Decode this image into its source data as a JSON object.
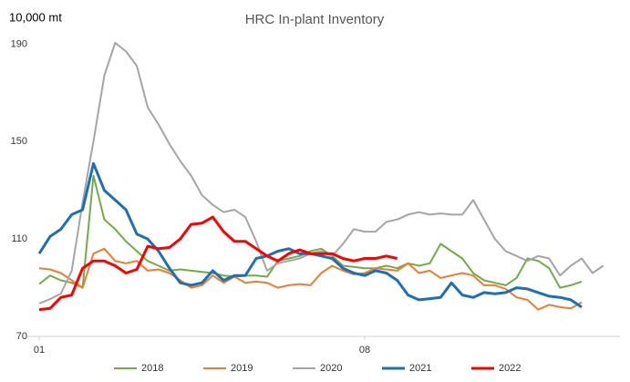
{
  "chart_data": {
    "type": "line",
    "title": "HRC In-plant Inventory",
    "y_label": "10,000 mt",
    "categories": [
      "01",
      null,
      null,
      null,
      null,
      null,
      null,
      null,
      null,
      null,
      null,
      null,
      null,
      null,
      null,
      null,
      null,
      null,
      null,
      null,
      null,
      null,
      null,
      null,
      null,
      null,
      null,
      null,
      null,
      null,
      "08",
      null,
      null,
      null,
      null,
      null,
      null,
      null,
      null,
      null,
      null,
      null,
      null,
      null,
      null,
      null,
      null,
      null,
      null,
      null,
      null,
      null,
      null
    ],
    "ylim": [
      70,
      195
    ],
    "yticks": [
      70,
      110,
      150,
      190
    ],
    "grid": false,
    "legend": "bottom",
    "series": [
      {
        "name": "2018",
        "color": "#70ad47",
        "values": [
          91.5,
          95,
          93,
          92,
          90,
          136,
          118,
          114,
          109,
          105,
          101,
          99,
          97,
          97.5,
          97,
          96.5,
          96,
          95,
          94.5,
          95,
          95,
          94.5,
          101,
          102,
          103,
          105,
          106,
          103,
          99,
          98.5,
          98,
          98,
          99,
          98,
          100,
          99,
          100,
          108,
          105,
          102,
          96,
          93,
          92,
          91,
          94,
          102,
          101,
          98,
          90,
          91,
          92.5,
          null,
          null
        ]
      },
      {
        "name": "2019",
        "color": "#ed7d31",
        "values": [
          98,
          97.5,
          96,
          93,
          90,
          104,
          106,
          101,
          100,
          101,
          97,
          97.5,
          96,
          93,
          90,
          91,
          95,
          92,
          94.5,
          92,
          92.5,
          92,
          90,
          91,
          91.5,
          91,
          96,
          99,
          97,
          95.5,
          96,
          98,
          97.5,
          97,
          100,
          96,
          97,
          94,
          95,
          96,
          95,
          91,
          91,
          89.5,
          86,
          85,
          81,
          83,
          82,
          81.5,
          84,
          null,
          null
        ]
      },
      {
        "name": "2020",
        "color": "#a5a5a5",
        "values": [
          83.5,
          85.3,
          87.6,
          97,
          125,
          150,
          177,
          190.5,
          187,
          181,
          164,
          157,
          149,
          142,
          136,
          128,
          124,
          121,
          122,
          119,
          109,
          97,
          100,
          101,
          102,
          104,
          105,
          103,
          108,
          114,
          113,
          113,
          117,
          118,
          120,
          121,
          120,
          120.5,
          120,
          120,
          126,
          118,
          110,
          105,
          103,
          101,
          103,
          102,
          95,
          99,
          102,
          96,
          99
        ]
      },
      {
        "name": "2021",
        "color": "#1f6fb5",
        "values": [
          104,
          111,
          114,
          120,
          122,
          141,
          130,
          126,
          122,
          112,
          110,
          105,
          98,
          92,
          91,
          92,
          97,
          93,
          95,
          95,
          102,
          103,
          105,
          106,
          104,
          104,
          103,
          102,
          98,
          96,
          95,
          97,
          96,
          93,
          87,
          85,
          85.5,
          86,
          92,
          87,
          86,
          88,
          87.5,
          88,
          90,
          89.5,
          88,
          86.5,
          86,
          85,
          82,
          null,
          null
        ]
      },
      {
        "name": "2022",
        "color": "#ff0000",
        "values": [
          81,
          81.5,
          86,
          87,
          98,
          101,
          101,
          99,
          96,
          97.5,
          107,
          106,
          106.5,
          110,
          116,
          116.5,
          119,
          113,
          109,
          109,
          106,
          103,
          101,
          104,
          105.5,
          104,
          104,
          104,
          102,
          101,
          102,
          102,
          103,
          102,
          null,
          null,
          null,
          null,
          null,
          null,
          null,
          null,
          null,
          null,
          null,
          null,
          null,
          null,
          null,
          null,
          null,
          null,
          null
        ]
      }
    ]
  }
}
